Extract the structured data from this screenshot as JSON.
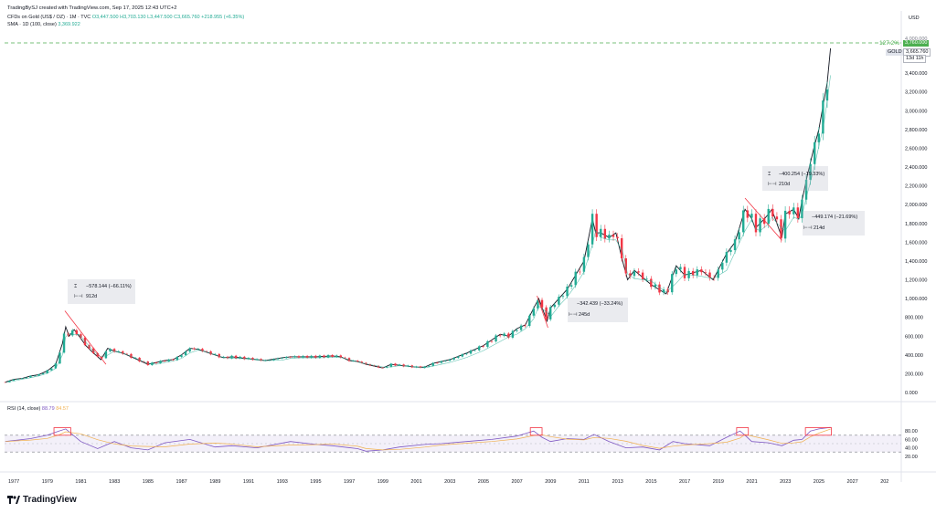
{
  "header": {
    "author_line": "TradingBySJ created with TradingView.com, Sep 17, 2025 12:43 UTC+2",
    "symbol": "CFDs on Gold (US$ / OZ) · 1M · TVC",
    "open": "O3,447.500",
    "high": "H3,703.130",
    "low": "L3,447.500",
    "close": "C3,665.760",
    "change": "+218.955 (+6.35%)",
    "sma_label": "SMA · 1D (100, close)",
    "sma_value": "3,369.922"
  },
  "price_axis": {
    "currency": "USD",
    "ticks": [
      "4,000.000",
      "3,600.000",
      "3,400.000",
      "3,200.000",
      "3,000.000",
      "2,800.000",
      "2,600.000",
      "2,400.000",
      "2,200.000",
      "2,000.000",
      "1,800.000",
      "1,600.000",
      "1,400.000",
      "1,200.000",
      "1,000.000",
      "800.000",
      "600.000",
      "400.000",
      "200.000",
      "0.000"
    ],
    "fib_label": "127.2%",
    "fib_value": "3,760.000",
    "last_symbol": "GOLD",
    "last_value": "3,665.760",
    "countdown": "13d 11h"
  },
  "rsi": {
    "label": "RSI (14, close)",
    "value1": "88.79",
    "value2": "84.57",
    "ticks": [
      "80.00",
      "60.00",
      "40.00",
      "20.00"
    ]
  },
  "time_axis": [
    "1977",
    "1979",
    "1981",
    "1983",
    "1985",
    "1987",
    "1989",
    "1991",
    "1993",
    "1995",
    "1997",
    "1999",
    "2001",
    "2003",
    "2005",
    "2007",
    "2009",
    "2011",
    "2013",
    "2015",
    "2017",
    "2019",
    "2021",
    "2023",
    "2025",
    "2027",
    "202"
  ],
  "annotations": [
    {
      "change": "−578.144 (−66.11%)",
      "duration": "912d"
    },
    {
      "change": "−342.439 (−33.24%)",
      "duration": "245d"
    },
    {
      "change": "−400.254 (−19.33%)",
      "duration": "210d"
    },
    {
      "change": "−449.174 (−21.69%)",
      "duration": "214d"
    }
  ],
  "colors": {
    "up": "#22ab94",
    "down": "#f23645",
    "rsi_line": "#7e57c2",
    "rsi_ma": "#f0b04f",
    "fib_line": "#4caf50",
    "measure_line": "#f23645"
  },
  "chart_data": {
    "type": "line",
    "title": "",
    "x": [
      1976.5,
      1977.0,
      1977.5,
      1978.0,
      1978.5,
      1979.0,
      1979.5,
      1979.9,
      1980.1,
      1980.3,
      1980.6,
      1980.9,
      1981.3,
      1981.7,
      1982.2,
      1982.6,
      1983.0,
      1983.5,
      1984.0,
      1984.5,
      1985.0,
      1985.5,
      1986.0,
      1986.5,
      1987.0,
      1987.5,
      1988.0,
      1988.5,
      1989.0,
      1989.5,
      1990.0,
      1991.0,
      1992.0,
      1993.0,
      1993.5,
      1994.0,
      1995.0,
      1996.0,
      1996.5,
      1997.0,
      1997.5,
      1998.0,
      1999.0,
      1999.5,
      2000.0,
      2001.0,
      2001.5,
      2002.0,
      2003.0,
      2004.0,
      2005.0,
      2006.0,
      2006.5,
      2007.0,
      2007.5,
      2008.0,
      2008.3,
      2008.8,
      2009.0,
      2009.5,
      2010.0,
      2010.5,
      2011.0,
      2011.5,
      2011.7,
      2012.0,
      2012.5,
      2012.9,
      2013.3,
      2013.6,
      2014.0,
      2015.0,
      2015.9,
      2016.5,
      2017.0,
      2018.0,
      2018.7,
      2019.5,
      2020.0,
      2020.6,
      2021.0,
      2021.2,
      2021.5,
      2022.0,
      2022.2,
      2022.8,
      2023.0,
      2023.5,
      2023.8,
      2024.0,
      2024.3,
      2024.7,
      2025.0,
      2025.3,
      2025.5,
      2025.7
    ],
    "y": [
      110,
      140,
      150,
      175,
      190,
      230,
      300,
      520,
      700,
      600,
      670,
      600,
      500,
      430,
      350,
      470,
      440,
      420,
      380,
      340,
      300,
      320,
      340,
      350,
      400,
      470,
      460,
      430,
      400,
      370,
      380,
      360,
      340,
      370,
      380,
      380,
      380,
      390,
      380,
      340,
      330,
      300,
      260,
      300,
      290,
      270,
      270,
      310,
      350,
      420,
      500,
      620,
      600,
      680,
      720,
      900,
      1000,
      760,
      900,
      1000,
      1100,
      1250,
      1400,
      1850,
      1700,
      1700,
      1650,
      1700,
      1400,
      1200,
      1300,
      1150,
      1050,
      1350,
      1250,
      1300,
      1200,
      1480,
      1600,
      1950,
      1850,
      1750,
      1800,
      1900,
      1950,
      1650,
      1900,
      1950,
      1850,
      2050,
      2300,
      2600,
      2800,
      3100,
      3300,
      3665
    ]
  },
  "rsi_data": {
    "x": [
      1976.5,
      1978.0,
      1979.0,
      1979.7,
      1980.1,
      1981.0,
      1982.0,
      1983.0,
      1984.0,
      1985.0,
      1986.0,
      1987.5,
      1989.0,
      1990.0,
      1991.5,
      1993.5,
      1995.0,
      1996.0,
      1997.5,
      1998.0,
      1999.0,
      2000.0,
      2001.5,
      2002.5,
      2004.0,
      2005.5,
      2007.0,
      2008.0,
      2008.5,
      2009.0,
      2010.0,
      2011.0,
      2011.6,
      2012.5,
      2013.5,
      2014.5,
      2015.5,
      2016.3,
      2017.0,
      2018.5,
      2019.5,
      2020.3,
      2020.6,
      2021.0,
      2022.0,
      2022.8,
      2023.5,
      2024.0,
      2024.5,
      2025.0,
      2025.7
    ],
    "values": [
      55,
      62,
      70,
      80,
      85,
      55,
      38,
      55,
      40,
      35,
      52,
      60,
      42,
      45,
      40,
      55,
      48,
      45,
      38,
      32,
      35,
      42,
      48,
      50,
      55,
      60,
      68,
      80,
      65,
      55,
      62,
      60,
      72,
      55,
      40,
      42,
      35,
      55,
      50,
      45,
      65,
      80,
      70,
      55,
      52,
      45,
      58,
      60,
      80,
      85,
      88.79
    ]
  }
}
